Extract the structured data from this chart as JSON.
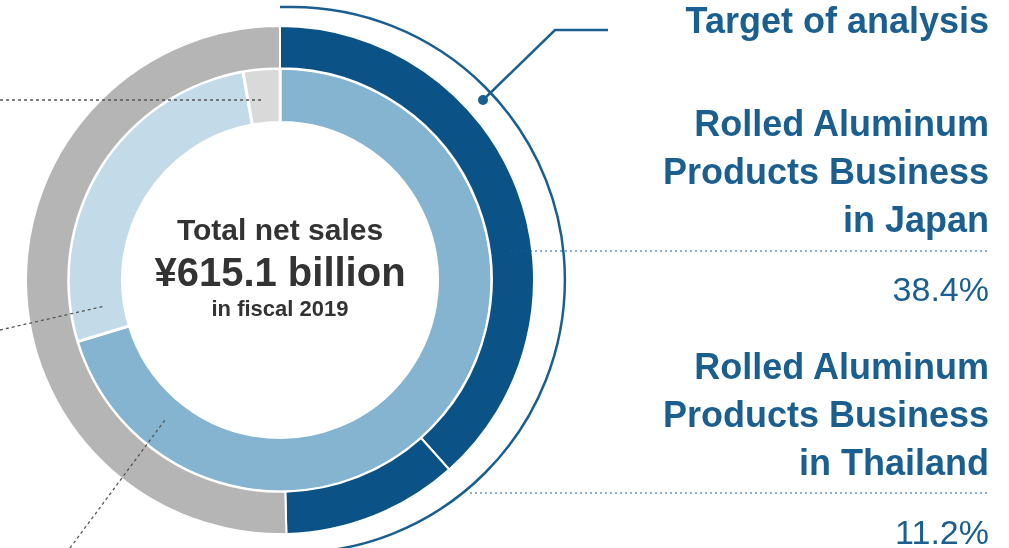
{
  "chart_data": {
    "type": "donut",
    "categories": [
      "Rolled Aluminum Products Business in Japan",
      "Rolled Aluminum Products Business in Thailand",
      null
    ],
    "series": [
      {
        "values": [
          38.4,
          11.2,
          50.4
        ],
        "colors": [
          "#0b5286",
          "#0b5286",
          "#b5b5b5"
        ],
        "value_labels": [
          "38.4%",
          "11.2%",
          null
        ]
      },
      {
        "values": [
          70.3,
          26.9,
          2.8
        ],
        "colors": [
          "#85b4d0",
          "#c3dae9",
          "#d9d9d9"
        ]
      }
    ],
    "annotations": [
      "Total net sales",
      "¥615.1 billion",
      "in fiscal 2019",
      "Target of analysis"
    ]
  }
}
